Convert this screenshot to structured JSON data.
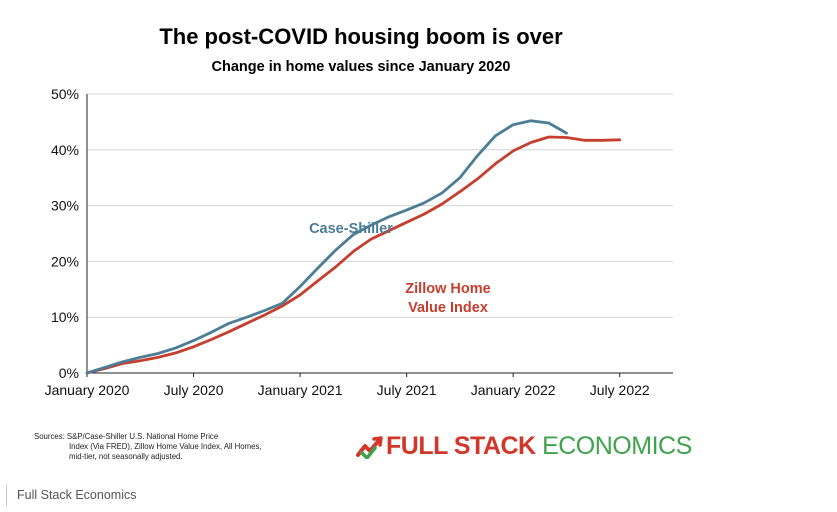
{
  "chart_data": {
    "type": "line",
    "title": "The post-COVID housing boom is over",
    "subtitle": "Change in home values since January 2020",
    "x_tick_labels": [
      "January 2020",
      "July 2020",
      "January 2021",
      "July 2021",
      "January 2022",
      "July 2022"
    ],
    "y_tick_labels": [
      "0%",
      "10%",
      "20%",
      "30%",
      "40%",
      "50%"
    ],
    "ylim": [
      0,
      50
    ],
    "x": [
      "2020-01",
      "2020-02",
      "2020-03",
      "2020-04",
      "2020-05",
      "2020-06",
      "2020-07",
      "2020-08",
      "2020-09",
      "2020-10",
      "2020-11",
      "2020-12",
      "2021-01",
      "2021-02",
      "2021-03",
      "2021-04",
      "2021-05",
      "2021-06",
      "2021-07",
      "2021-08",
      "2021-09",
      "2021-10",
      "2021-11",
      "2021-12",
      "2022-01",
      "2022-02",
      "2022-03",
      "2022-04",
      "2022-05",
      "2022-06",
      "2022-07",
      "2022-08",
      "2022-09"
    ],
    "series": [
      {
        "name": "Case-Shiller",
        "color": "#4b7d96",
        "values": [
          0.0,
          1.0,
          2.0,
          2.8,
          3.5,
          4.5,
          5.8,
          7.3,
          8.9,
          10.0,
          11.2,
          12.5,
          15.5,
          18.8,
          22.0,
          24.8,
          26.5,
          28.0,
          29.2,
          30.5,
          32.3,
          35.0,
          39.0,
          42.5,
          44.5,
          45.2,
          44.8,
          43.0,
          null,
          null,
          null,
          null,
          null
        ]
      },
      {
        "name": "Zillow Home Value Index",
        "color": "#c63e2e",
        "values": [
          0.0,
          0.8,
          1.7,
          2.2,
          2.8,
          3.6,
          4.7,
          6.0,
          7.4,
          8.9,
          10.4,
          12.0,
          14.0,
          16.5,
          19.0,
          21.8,
          24.0,
          25.5,
          27.0,
          28.5,
          30.3,
          32.5,
          34.8,
          37.5,
          39.8,
          41.3,
          42.3,
          42.2,
          41.7,
          41.7,
          41.8,
          null,
          null
        ]
      }
    ],
    "grid": "horizontal",
    "legend": "inline labels"
  },
  "series_labels": {
    "case_shiller": "Case-Shiller",
    "zillow_line1": "Zillow Home",
    "zillow_line2": "Value Index"
  },
  "sources": {
    "line1": "Sources: S&P/Case-Shiller U.S. National Home Price",
    "line2": "Index (Via FRED), Zillow Home Value Index, All Homes,",
    "line3": "mid-tier, not seasonally adjusted."
  },
  "brand": {
    "word1": "FULL STACK",
    "word2": "ECONOMICS",
    "icon": "chart-check-icon",
    "colors": {
      "red": "#d2372b",
      "green": "#3fa34d"
    }
  },
  "caption": "Full Stack Economics"
}
